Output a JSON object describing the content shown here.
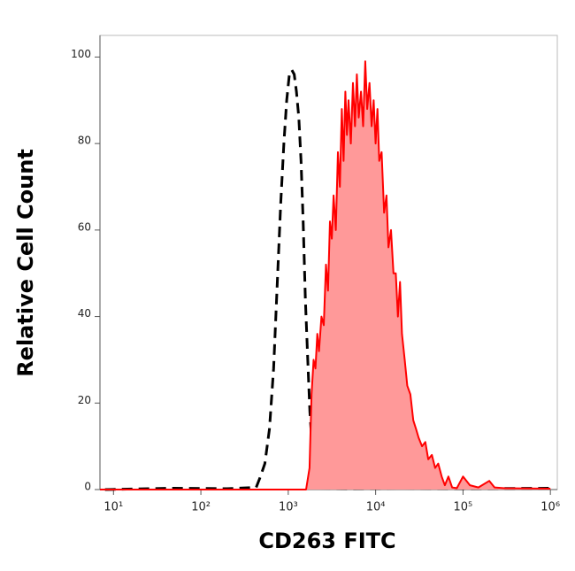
{
  "chart_data": {
    "type": "line",
    "x_label": "CD263 FITC",
    "y_label": "Relative Cell Count",
    "xscale": "log",
    "xlim": [
      7,
      1200000
    ],
    "ylim": [
      0,
      105
    ],
    "xticks": [
      {
        "value": 10,
        "label": "10¹"
      },
      {
        "value": 100,
        "label": "10²"
      },
      {
        "value": 1000,
        "label": "10³"
      },
      {
        "value": 10000,
        "label": "10⁴"
      },
      {
        "value": 100000,
        "label": "10⁵"
      },
      {
        "value": 1000000,
        "label": "10⁶"
      }
    ],
    "yticks": [
      0,
      20,
      40,
      60,
      80,
      100
    ],
    "series": [
      {
        "color": "#000000",
        "line_style": "dashed",
        "x": [
          8,
          50,
          200,
          430,
          480,
          540,
          610,
          680,
          750,
          820,
          890,
          960,
          1030,
          1100,
          1170,
          1240,
          1320,
          1400,
          1480,
          1570,
          1670,
          1770,
          1900,
          2050,
          2300,
          5000,
          20000,
          100000,
          1000000
        ],
        "values": [
          0,
          0.3,
          0.2,
          0.5,
          3,
          6,
          14,
          28,
          48,
          66,
          80,
          90,
          96,
          97,
          96,
          92,
          86,
          76,
          62,
          44,
          30,
          18,
          8,
          2,
          0.3,
          0.2,
          0.3,
          0.2,
          0.3
        ]
      },
      {
        "color": "#ff0000",
        "fill": "#ff9999",
        "line_style": "solid",
        "x": [
          7,
          1600,
          1750,
          1850,
          1950,
          2050,
          2150,
          2250,
          2400,
          2550,
          2700,
          2850,
          3000,
          3150,
          3300,
          3500,
          3700,
          3900,
          4100,
          4300,
          4500,
          4700,
          4900,
          5200,
          5500,
          5800,
          6100,
          6400,
          6800,
          7200,
          7600,
          8000,
          8500,
          9000,
          9500,
          10000,
          10500,
          11000,
          11700,
          12500,
          13300,
          14000,
          15000,
          16000,
          17000,
          18000,
          19000,
          20000,
          21500,
          23000,
          25000,
          27000,
          29000,
          31000,
          34000,
          37000,
          40000,
          44000,
          48000,
          52000,
          57000,
          62000,
          68000,
          75000,
          85000,
          100000,
          120000,
          150000,
          200000,
          230000,
          300000,
          1000000
        ],
        "values": [
          0,
          0,
          5,
          22,
          30,
          28,
          36,
          32,
          40,
          38,
          52,
          46,
          62,
          58,
          68,
          60,
          78,
          70,
          88,
          76,
          92,
          82,
          90,
          80,
          94,
          84,
          96,
          86,
          92,
          84,
          99,
          88,
          94,
          84,
          90,
          80,
          88,
          76,
          78,
          64,
          68,
          56,
          60,
          50,
          50,
          40,
          48,
          36,
          30,
          24,
          22,
          16,
          14,
          12,
          10,
          11,
          7,
          8,
          5,
          6,
          3,
          1,
          3,
          0.5,
          0.3,
          3,
          1,
          0.5,
          2,
          0.5,
          0.3,
          0.2
        ]
      }
    ]
  }
}
